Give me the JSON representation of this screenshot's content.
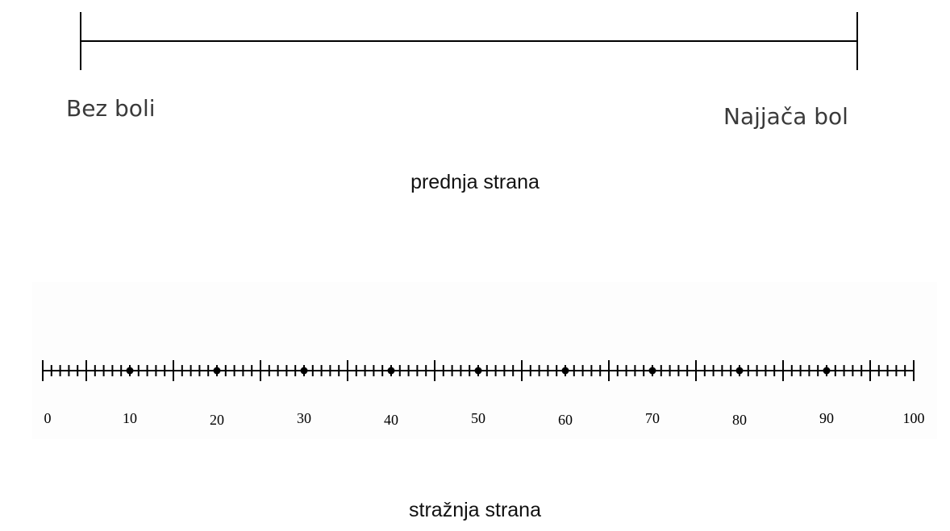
{
  "front": {
    "left_label": "Bez boli",
    "right_label": "Najjača bol",
    "caption": "prednja strana"
  },
  "back": {
    "caption": "stražnja strana",
    "scale": {
      "min": 0,
      "max": 100,
      "minor_step": 1,
      "major_step": 10,
      "mid_step": 5,
      "labels": [
        "0",
        "10",
        "20",
        "30",
        "40",
        "50",
        "60",
        "70",
        "80",
        "90",
        "100"
      ]
    }
  },
  "colors": {
    "line": "#000000",
    "label_text": "#3a3a3a",
    "caption_text": "#111111"
  }
}
